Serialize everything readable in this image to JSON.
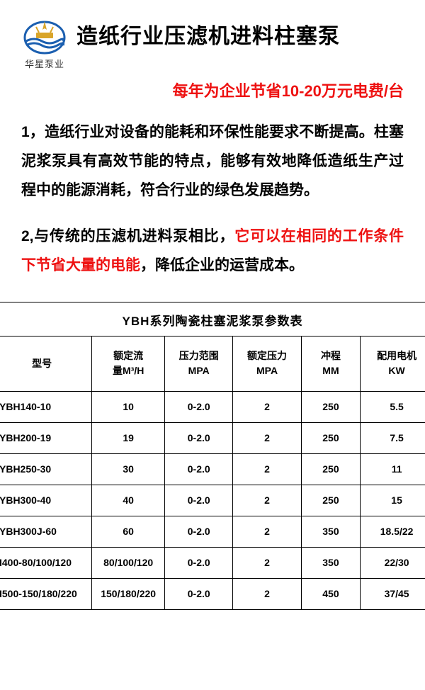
{
  "logo": {
    "brand_text": "华星泵业"
  },
  "title": "造纸行业压滤机进料柱塞泵",
  "subtitle": "每年为企业节省10-20万元电费/台",
  "para1": "1，造纸行业对设备的能耗和环保性能要求不断提高。柱塞泥浆泵具有高效节能的特点，能够有效地降低造纸生产过程中的能源消耗，符合行业的绿色发展趋势。",
  "para2_a": "2,与传统的压滤机进料泵相比，",
  "para2_red": "它可以在相同的工作条件下节省大量的电能",
  "para2_b": "，降低企业的运营成本。",
  "table": {
    "title": "YBH系列陶瓷柱塞泥浆泵参数表",
    "columns": [
      {
        "l1": "型号",
        "l2": ""
      },
      {
        "l1": "额定流",
        "l2": "量M³/H"
      },
      {
        "l1": "压力范围",
        "l2": "MPA"
      },
      {
        "l1": "额定压力",
        "l2": "MPA"
      },
      {
        "l1": "冲程",
        "l2": "MM"
      },
      {
        "l1": "配用电机",
        "l2": "KW"
      }
    ],
    "rows": [
      [
        "YBH140-10",
        "10",
        "0-2.0",
        "2",
        "250",
        "5.5"
      ],
      [
        "YBH200-19",
        "19",
        "0-2.0",
        "2",
        "250",
        "7.5"
      ],
      [
        "YBH250-30",
        "30",
        "0-2.0",
        "2",
        "250",
        "11"
      ],
      [
        "YBH300-40",
        "40",
        "0-2.0",
        "2",
        "250",
        "15"
      ],
      [
        "YBH300J-60",
        "60",
        "0-2.0",
        "2",
        "350",
        "18.5/22"
      ],
      [
        "I400-80/100/120",
        "80/100/120",
        "0-2.0",
        "2",
        "350",
        "22/30"
      ],
      [
        "I500-150/180/220",
        "150/180/220",
        "0-2.0",
        "2",
        "450",
        "37/45"
      ]
    ]
  },
  "colors": {
    "accent_red": "#ee1111",
    "text_black": "#000000",
    "logo_blue": "#1b5fb0",
    "logo_gold": "#d9a52b",
    "background": "#ffffff"
  }
}
